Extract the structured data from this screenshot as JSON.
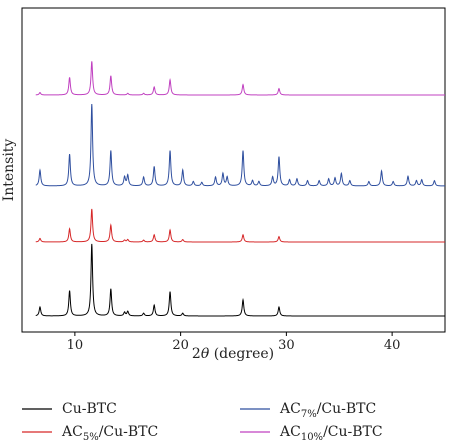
{
  "chart_data": {
    "type": "line",
    "xlabel_prefix": "2",
    "xlabel_symbol": "θ",
    "xlabel_suffix": " (degree)",
    "ylabel": "Intensity",
    "xlim": [
      5,
      45
    ],
    "xticks": [
      10,
      20,
      30,
      40
    ],
    "yticks_shown": false,
    "grid": false,
    "legend_position": "bottom",
    "series": [
      {
        "name": "Cu-BTC",
        "legend_main": "Cu-BTC",
        "legend_sub": "",
        "legend_tail": "",
        "color": "#000000",
        "baseline": 0,
        "peaks": [
          [
            6.7,
            0.1
          ],
          [
            9.5,
            0.28
          ],
          [
            11.6,
            0.8
          ],
          [
            13.4,
            0.3
          ],
          [
            14.7,
            0.04
          ],
          [
            15.0,
            0.05
          ],
          [
            16.5,
            0.03
          ],
          [
            17.5,
            0.12
          ],
          [
            19.0,
            0.27
          ],
          [
            20.2,
            0.03
          ],
          [
            25.9,
            0.18
          ],
          [
            29.3,
            0.1
          ]
        ]
      },
      {
        "name": "AC5%/Cu-BTC",
        "legend_main": "AC",
        "legend_sub": "5%",
        "legend_tail": "/Cu-BTC",
        "color": "#d62728",
        "baseline": 1,
        "peaks": [
          [
            6.7,
            0.06
          ],
          [
            9.5,
            0.22
          ],
          [
            11.6,
            0.55
          ],
          [
            13.4,
            0.28
          ],
          [
            14.7,
            0.03
          ],
          [
            15.0,
            0.04
          ],
          [
            16.5,
            0.03
          ],
          [
            17.5,
            0.12
          ],
          [
            19.0,
            0.2
          ],
          [
            20.2,
            0.04
          ],
          [
            25.9,
            0.12
          ],
          [
            29.3,
            0.09
          ]
        ]
      },
      {
        "name": "AC7%/Cu-BTC",
        "legend_main": "AC",
        "legend_sub": "7%",
        "legend_tail": "/Cu-BTC",
        "color": "#2f4f9f",
        "baseline": 2,
        "peaks": [
          [
            6.7,
            0.18
          ],
          [
            9.5,
            0.36
          ],
          [
            11.6,
            0.93
          ],
          [
            13.4,
            0.4
          ],
          [
            14.7,
            0.1
          ],
          [
            15.0,
            0.12
          ],
          [
            16.5,
            0.1
          ],
          [
            17.5,
            0.22
          ],
          [
            19.0,
            0.4
          ],
          [
            20.2,
            0.18
          ],
          [
            21.2,
            0.05
          ],
          [
            22.0,
            0.04
          ],
          [
            23.3,
            0.1
          ],
          [
            24.0,
            0.14
          ],
          [
            24.4,
            0.1
          ],
          [
            25.9,
            0.4
          ],
          [
            26.8,
            0.06
          ],
          [
            27.4,
            0.05
          ],
          [
            28.7,
            0.1
          ],
          [
            29.3,
            0.33
          ],
          [
            30.3,
            0.07
          ],
          [
            31.0,
            0.08
          ],
          [
            32.0,
            0.06
          ],
          [
            33.1,
            0.06
          ],
          [
            34.0,
            0.08
          ],
          [
            34.6,
            0.09
          ],
          [
            35.2,
            0.14
          ],
          [
            36.0,
            0.06
          ],
          [
            37.8,
            0.05
          ],
          [
            39.0,
            0.17
          ],
          [
            40.1,
            0.05
          ],
          [
            41.5,
            0.11
          ],
          [
            42.3,
            0.06
          ],
          [
            42.8,
            0.07
          ],
          [
            44.0,
            0.06
          ]
        ]
      },
      {
        "name": "AC10%/Cu-BTC",
        "legend_main": "AC",
        "legend_sub": "10%",
        "legend_tail": "/Cu-BTC",
        "color": "#c040c0",
        "baseline": 3,
        "peaks": [
          [
            6.7,
            0.03
          ],
          [
            9.5,
            0.22
          ],
          [
            11.6,
            0.42
          ],
          [
            13.4,
            0.24
          ],
          [
            15.0,
            0.02
          ],
          [
            16.5,
            0.02
          ],
          [
            17.5,
            0.1
          ],
          [
            19.0,
            0.19
          ],
          [
            25.9,
            0.13
          ],
          [
            29.3,
            0.08
          ]
        ]
      }
    ]
  }
}
